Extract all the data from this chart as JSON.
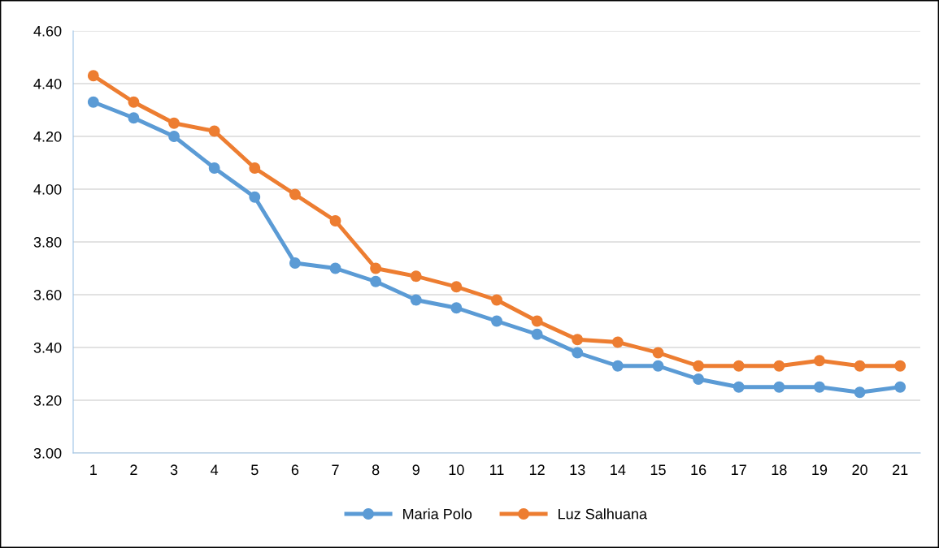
{
  "chart_data": {
    "type": "line",
    "categories": [
      "1",
      "2",
      "3",
      "4",
      "5",
      "6",
      "7",
      "8",
      "9",
      "10",
      "11",
      "12",
      "13",
      "14",
      "15",
      "16",
      "17",
      "18",
      "19",
      "20",
      "21"
    ],
    "series": [
      {
        "name": "Maria Polo",
        "color": "#5b9bd5",
        "values": [
          4.33,
          4.27,
          4.2,
          4.08,
          3.97,
          3.72,
          3.7,
          3.65,
          3.58,
          3.55,
          3.5,
          3.45,
          3.38,
          3.33,
          3.33,
          3.28,
          3.25,
          3.25,
          3.25,
          3.23,
          3.25
        ]
      },
      {
        "name": "Luz Salhuana",
        "color": "#ed7d31",
        "values": [
          4.43,
          4.33,
          4.25,
          4.22,
          4.08,
          3.98,
          3.88,
          3.7,
          3.67,
          3.63,
          3.58,
          3.5,
          3.43,
          3.42,
          3.38,
          3.33,
          3.33,
          3.33,
          3.35,
          3.33,
          3.33
        ]
      }
    ],
    "ylim": [
      3.0,
      4.6
    ],
    "yticks": [
      {
        "value": 3.0,
        "label": "3.00"
      },
      {
        "value": 3.2,
        "label": "3.20"
      },
      {
        "value": 3.4,
        "label": "3.40"
      },
      {
        "value": 3.6,
        "label": "3.60"
      },
      {
        "value": 3.8,
        "label": "3.80"
      },
      {
        "value": 4.0,
        "label": "4.00"
      },
      {
        "value": 4.2,
        "label": "4.20"
      },
      {
        "value": 4.4,
        "label": "4.40"
      },
      {
        "value": 4.6,
        "label": "4.60"
      }
    ],
    "grid": "y",
    "legend": "bottom",
    "marker": "circle",
    "line_style": "solid"
  }
}
